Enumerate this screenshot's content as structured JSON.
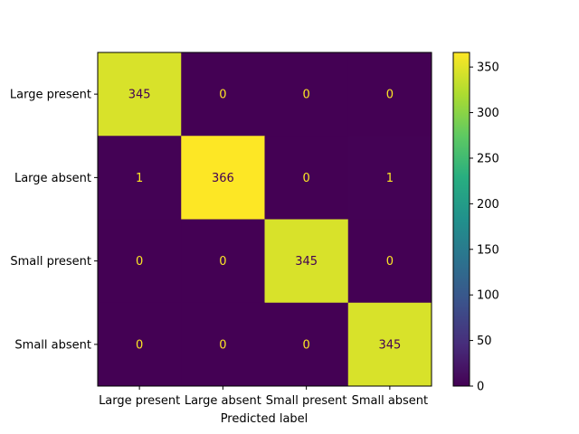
{
  "chart_data": {
    "type": "heatmap",
    "title": "",
    "xlabel": "Predicted label",
    "ylabel": "",
    "x_categories": [
      "Large present",
      "Large absent",
      "Small present",
      "Small absent"
    ],
    "y_categories": [
      "Large present",
      "Large absent",
      "Small present",
      "Small absent"
    ],
    "values": [
      [
        345,
        0,
        0,
        0
      ],
      [
        1,
        366,
        0,
        1
      ],
      [
        0,
        0,
        345,
        0
      ],
      [
        0,
        0,
        0,
        345
      ]
    ],
    "colormap": "viridis",
    "vmin": 0,
    "vmax": 366,
    "colorbar_ticks": [
      0,
      50,
      100,
      150,
      200,
      250,
      300,
      350
    ],
    "grid": false,
    "colors": {
      "high_text": "#440154",
      "low_text": "#fde725"
    }
  }
}
